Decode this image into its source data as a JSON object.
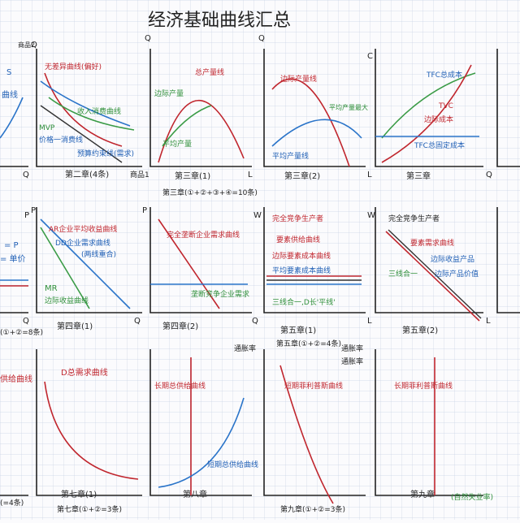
{
  "title": "经济基础曲线汇总",
  "panels": [
    {
      "labels": [
        "S",
        "曲线",
        "Q"
      ]
    },
    {
      "labels": [
        "商品2",
        "无差异曲线(偏好)",
        "收入消费曲线",
        "MVP",
        "价格一消费线",
        "预算约束线(需求)",
        "Q",
        "商品1",
        "第二章(4条)"
      ]
    },
    {
      "labels": [
        "Q",
        "总产量线",
        "边际产量",
        "平均产量",
        "L",
        "第三章(1)",
        "第三章(①+②+③+④=10条)"
      ]
    },
    {
      "labels": [
        "Q",
        "边际产量线",
        "平均产量最大",
        "平均产量线",
        "L",
        "第三章(2)"
      ]
    },
    {
      "labels": [
        "C",
        "TFC总成本",
        "TVC",
        "边际成本",
        "TFC总固定成本",
        "Q",
        "第三章"
      ]
    },
    {
      "labels": [
        "P",
        "= P",
        "= 单价",
        "Q",
        "(①+②=8条)"
      ]
    },
    {
      "labels": [
        "P",
        "AR企业平均收益曲线",
        "DD企业需求曲线",
        "(两线重合)",
        "MR",
        "边际收益曲线",
        "Q",
        "第四章(1)"
      ]
    },
    {
      "labels": [
        "P",
        "完全垄断企业需求曲线",
        "垄断竞争企业需求",
        "Q",
        "第四章(2)"
      ]
    },
    {
      "labels": [
        "W",
        "完全竞争生产者",
        "要素供给曲线",
        "边际要素成本曲线",
        "平均要素成本曲线",
        "三线合一,D长'平线'",
        "L",
        "第五章(1)",
        "第五章(①+②=4条)"
      ]
    },
    {
      "labels": [
        "W",
        "完全竞争生产者",
        "要素需求曲线",
        "边际收益产品",
        "边际产品价值",
        "三线合一",
        "L",
        "第五章(2)"
      ]
    },
    {
      "labels": [
        "供给曲线",
        "(=4条)"
      ]
    },
    {
      "labels": [
        "D总需求曲线",
        "第七章(1)",
        "第七章(①+②=3条)"
      ]
    },
    {
      "labels": [
        "长期总供给曲线",
        "短期总供给曲线",
        "通胀率",
        "第八章"
      ]
    },
    {
      "labels": [
        "通胀率",
        "短期菲利普斯曲线",
        "第九章(①+②=3条)"
      ]
    },
    {
      "labels": [
        "通胀率",
        "长期菲利普斯曲线",
        "第九章",
        "(自然失业率)"
      ]
    }
  ]
}
